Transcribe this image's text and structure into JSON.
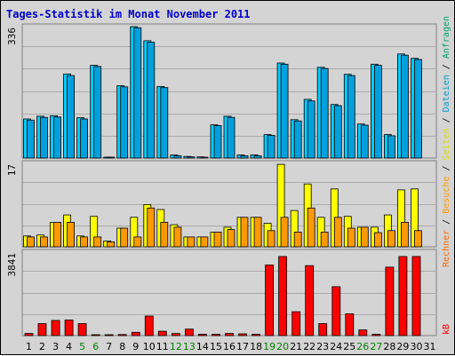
{
  "chart_data": {
    "type": "bar",
    "title": "Tages-Statistik im Monat November 2011",
    "categories": [
      "1",
      "2",
      "3",
      "4",
      "5",
      "6",
      "7",
      "8",
      "9",
      "10",
      "11",
      "12",
      "13",
      "14",
      "15",
      "16",
      "17",
      "18",
      "19",
      "20",
      "21",
      "22",
      "23",
      "24",
      "25",
      "26",
      "27",
      "28",
      "29",
      "30",
      "31"
    ],
    "weekend_days": [
      "5",
      "6",
      "12",
      "13",
      "19",
      "20",
      "26",
      "27"
    ],
    "panels": [
      {
        "name": "top",
        "max_label": "336",
        "ylim": [
          0,
          336
        ],
        "series": [
          {
            "name": "Dateien",
            "color": "#00ccff",
            "values": [
              100,
              107,
              108,
              215,
              103,
              237,
              2,
              185,
              336,
              300,
              183,
              8,
              4,
              3,
              85,
              107,
              8,
              8,
              60,
              243,
              98,
              150,
              232,
              137,
              214,
              87,
              240,
              60,
              266,
              255,
              null
            ]
          },
          {
            "name": "Anfragen",
            "color": "#00a0dd",
            "values": [
              97,
              104,
              105,
              211,
              100,
              234,
              1,
              182,
              333,
              296,
              180,
              6,
              3,
              2,
              83,
              104,
              6,
              6,
              58,
              240,
              95,
              146,
              229,
              134,
              211,
              84,
              237,
              57,
              263,
              252,
              null
            ]
          }
        ]
      },
      {
        "name": "middle",
        "max_label": "17",
        "ylim": [
          0,
          17
        ],
        "series": [
          {
            "name": "Seiten",
            "color": "#ffff00",
            "values": [
              2.2,
              2.4,
              5,
              6.5,
              2.2,
              6.2,
              1.2,
              3.8,
              6,
              8.6,
              7.6,
              4.5,
              2,
              2,
              3,
              4,
              6,
              6,
              4.8,
              16.8,
              7.4,
              12.8,
              6,
              11.8,
              6.2,
              4,
              4,
              6.5,
              11.6,
              11.8,
              null
            ]
          },
          {
            "name": "Besuche",
            "color": "#ff9900",
            "values": [
              2,
              2,
              5,
              5,
              2,
              2,
              1,
              3.8,
              2,
              7.9,
              5,
              4,
              2,
              2,
              3,
              3.5,
              6,
              6,
              3.3,
              6,
              3,
              7.9,
              3,
              6,
              3.8,
              4,
              2.9,
              3.3,
              5,
              3.3,
              null
            ]
          }
        ]
      },
      {
        "name": "bottom",
        "max_label": "3841",
        "ylim": [
          0,
          3841
        ],
        "series": [
          {
            "name": "kB",
            "color": "#ff0000",
            "values": [
              100,
              550,
              700,
              720,
              550,
              20,
              20,
              50,
              150,
              900,
              200,
              100,
              300,
              60,
              60,
              100,
              80,
              60,
              3250,
              3640,
              1100,
              3220,
              550,
              2250,
              1000,
              260,
              60,
              3150,
              3640,
              3640,
              null
            ]
          }
        ]
      }
    ],
    "legend_right": [
      {
        "text": "Anfragen",
        "color": "#00a070"
      },
      {
        "text": " / ",
        "color": "#000000"
      },
      {
        "text": "Dateien",
        "color": "#0099cc"
      },
      {
        "text": " / ",
        "color": "#000000"
      },
      {
        "text": "Seiten",
        "color": "#dddd00"
      },
      {
        "text": " / ",
        "color": "#000000"
      },
      {
        "text": "Besuche",
        "color": "#ff9900"
      },
      {
        "text": " / ",
        "color": "#000000"
      },
      {
        "text": "Rechner",
        "color": "#ff6600"
      },
      {
        "text": "kB",
        "color": "#ff0000"
      }
    ],
    "colors": {
      "title": "#0000cc",
      "weekend_label": "#008000",
      "day_label": "#000000",
      "grid": "#aaaaaa",
      "plot_bg": "#d4d4d4"
    }
  }
}
